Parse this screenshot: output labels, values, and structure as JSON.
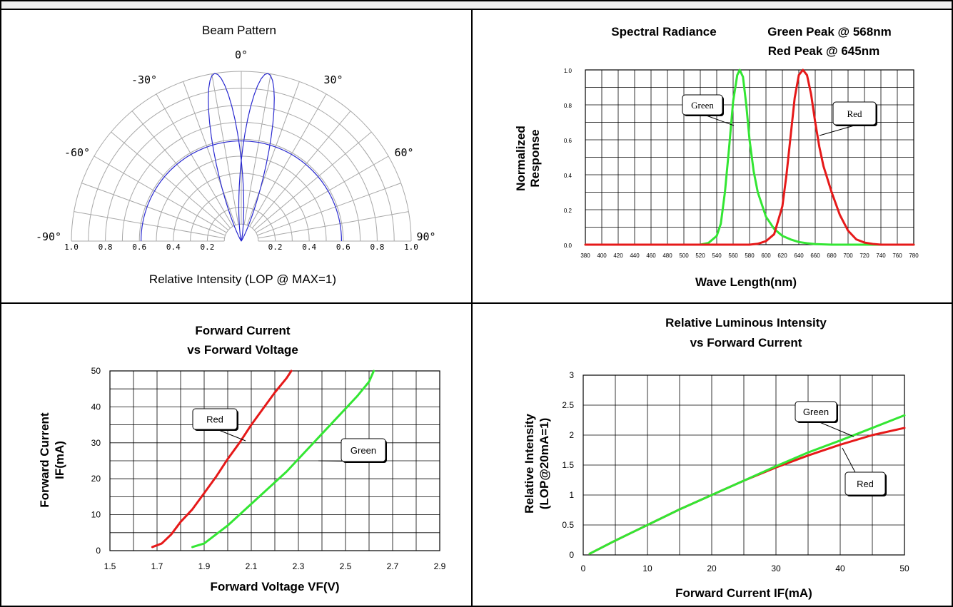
{
  "colors": {
    "green": "#33e633",
    "red": "#e61919",
    "beam": "#2a2ad0",
    "polar_grid": "#a8a8a8",
    "header_bg": "#eeeeee"
  },
  "chart_data": [
    {
      "type": "polar",
      "title": "Beam Pattern",
      "xlabel": "Relative Intensity (LOP @ MAX=1)",
      "angle_labels": [
        "0°",
        "-30°",
        "30°",
        "-60°",
        "60°",
        "-90°",
        "90°"
      ],
      "radial_tick_labels": [
        "1.0",
        "0.8",
        "0.6",
        "0.4",
        "0.2",
        "0.2",
        "0.4",
        "0.6",
        "0.8",
        "1.0"
      ],
      "series": [
        {
          "lobe_half_angle_deg": 15,
          "note": "narrow lobes centred at ±8°",
          "points": [
            [
              0,
              0.78
            ],
            [
              -8,
              1.0
            ],
            [
              8,
              1.0
            ]
          ]
        }
      ],
      "circle_radius": 0.59
    },
    {
      "type": "line",
      "title": "Spectral Radiance",
      "title_right": [
        "Green Peak @ 568nm",
        "Red Peak @ 645nm"
      ],
      "xlabel": "Wave Length(nm)",
      "ylabel": [
        "Normalized",
        "Response"
      ],
      "xlim": [
        380,
        780
      ],
      "ylim": [
        0,
        1.0
      ],
      "xticks": [
        "380",
        "400",
        "420",
        "440",
        "460",
        "480",
        "500",
        "520",
        "540",
        "560",
        "580",
        "600",
        "620",
        "640",
        "660",
        "680",
        "700",
        "720",
        "740",
        "760",
        "780"
      ],
      "yticks": [
        "0.0",
        "0.2",
        "0.4",
        "0.6",
        "0.8",
        "1.0"
      ],
      "series": [
        {
          "name": "Green",
          "peak": 568,
          "x": [
            380,
            520,
            530,
            540,
            545,
            550,
            555,
            560,
            565,
            568,
            572,
            576,
            580,
            585,
            590,
            600,
            610,
            620,
            630,
            640,
            650,
            660,
            680,
            700,
            780
          ],
          "y": [
            0,
            0,
            0.01,
            0.05,
            0.12,
            0.3,
            0.55,
            0.82,
            0.97,
            1.0,
            0.96,
            0.8,
            0.6,
            0.42,
            0.3,
            0.16,
            0.09,
            0.05,
            0.03,
            0.015,
            0.008,
            0.003,
            0,
            0,
            0
          ]
        },
        {
          "name": "Red",
          "peak": 645,
          "x": [
            380,
            580,
            590,
            600,
            610,
            620,
            625,
            630,
            635,
            640,
            645,
            650,
            655,
            660,
            665,
            670,
            680,
            690,
            700,
            710,
            720,
            730,
            740,
            780
          ],
          "y": [
            0,
            0,
            0.005,
            0.02,
            0.06,
            0.22,
            0.4,
            0.62,
            0.84,
            0.97,
            1.0,
            0.97,
            0.86,
            0.7,
            0.56,
            0.45,
            0.3,
            0.17,
            0.08,
            0.03,
            0.012,
            0.004,
            0,
            0
          ]
        }
      ]
    },
    {
      "type": "line",
      "title": [
        "Forward Current",
        "vs Forward Voltage"
      ],
      "xlabel": "Forward Voltage VF(V)",
      "ylabel": [
        "Forward Current",
        "IF(mA)"
      ],
      "xlim": [
        1.5,
        2.9
      ],
      "ylim": [
        0,
        50
      ],
      "xticks": [
        "1.5",
        "1.7",
        "1.9",
        "2.1",
        "2.3",
        "2.5",
        "2.7",
        "2.9"
      ],
      "yticks": [
        "0",
        "10",
        "20",
        "30",
        "40",
        "50"
      ],
      "series": [
        {
          "name": "Red",
          "x": [
            1.68,
            1.72,
            1.76,
            1.8,
            1.85,
            1.9,
            1.95,
            2.0,
            2.05,
            2.1,
            2.15,
            2.2,
            2.25,
            2.27
          ],
          "y": [
            1,
            2,
            4.5,
            8,
            11.5,
            16,
            20.5,
            25.5,
            30,
            35,
            39.5,
            44,
            48,
            50
          ]
        },
        {
          "name": "Green",
          "x": [
            1.85,
            1.9,
            1.95,
            2.0,
            2.05,
            2.1,
            2.15,
            2.2,
            2.25,
            2.3,
            2.35,
            2.4,
            2.45,
            2.5,
            2.55,
            2.6,
            2.62
          ],
          "y": [
            1,
            2,
            4.5,
            7,
            10,
            13,
            16,
            19,
            22,
            25.5,
            29,
            32.5,
            36,
            39.5,
            43,
            47,
            50
          ]
        }
      ]
    },
    {
      "type": "line",
      "title": [
        "Relative Luminous Intensity",
        "vs Forward Current"
      ],
      "xlabel": "Forward Current IF(mA)",
      "ylabel": [
        "Relative Intensity",
        "(LOP@20mA=1)"
      ],
      "xlim": [
        0,
        50
      ],
      "ylim": [
        0,
        3
      ],
      "xticks": [
        "0",
        "10",
        "20",
        "30",
        "40",
        "50"
      ],
      "yticks": [
        "0",
        "0.5",
        "1",
        "1.5",
        "2",
        "2.5",
        "3"
      ],
      "series": [
        {
          "name": "Green",
          "x": [
            1,
            5,
            10,
            15,
            20,
            25,
            30,
            35,
            40,
            45,
            50
          ],
          "y": [
            0.02,
            0.24,
            0.5,
            0.76,
            1.0,
            1.24,
            1.48,
            1.71,
            1.91,
            2.12,
            2.33
          ]
        },
        {
          "name": "Red",
          "x": [
            1,
            5,
            10,
            15,
            20,
            25,
            30,
            35,
            40,
            45,
            50
          ],
          "y": [
            0.02,
            0.24,
            0.5,
            0.76,
            1.0,
            1.24,
            1.46,
            1.66,
            1.84,
            2.0,
            2.12
          ]
        }
      ]
    }
  ]
}
